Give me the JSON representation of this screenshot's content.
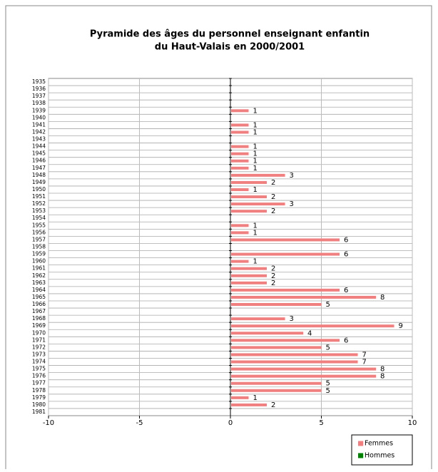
{
  "chart_data": {
    "type": "barh",
    "title": [
      "Pyramide des âges du personnel enseignant enfantin",
      "du Haut-Valais en 2000/2001"
    ],
    "categories": [
      "1935",
      "1936",
      "1937",
      "1938",
      "1939",
      "1940",
      "1941",
      "1942",
      "1943",
      "1944",
      "1945",
      "1946",
      "1947",
      "1948",
      "1949",
      "1950",
      "1951",
      "1952",
      "1953",
      "1954",
      "1955",
      "1956",
      "1957",
      "1958",
      "1959",
      "1960",
      "1961",
      "1962",
      "1963",
      "1964",
      "1965",
      "1966",
      "1967",
      "1968",
      "1969",
      "1970",
      "1971",
      "1972",
      "1973",
      "1974",
      "1975",
      "1976",
      "1977",
      "1978",
      "1979",
      "1980",
      "1981"
    ],
    "series": [
      {
        "name": "Femmes",
        "color": "#f08080",
        "values": [
          null,
          null,
          null,
          null,
          1,
          null,
          1,
          1,
          null,
          1,
          1,
          1,
          1,
          3,
          2,
          1,
          2,
          3,
          2,
          null,
          1,
          1,
          6,
          null,
          6,
          1,
          2,
          2,
          2,
          6,
          8,
          5,
          null,
          3,
          9,
          4,
          6,
          5,
          7,
          7,
          8,
          8,
          5,
          5,
          1,
          2,
          null
        ]
      },
      {
        "name": "Hommes",
        "color": "#008000",
        "values": [
          null,
          null,
          null,
          null,
          null,
          null,
          null,
          null,
          null,
          null,
          null,
          null,
          null,
          null,
          null,
          null,
          null,
          null,
          null,
          null,
          null,
          null,
          null,
          null,
          null,
          null,
          null,
          null,
          null,
          null,
          null,
          null,
          null,
          null,
          null,
          null,
          null,
          null,
          null,
          null,
          null,
          null,
          null,
          null,
          null,
          null,
          null
        ]
      }
    ],
    "xlim": [
      -10,
      10
    ],
    "xticks": [
      -10,
      -5,
      0,
      5,
      10
    ],
    "grid": true,
    "legend": "bottom-right"
  }
}
